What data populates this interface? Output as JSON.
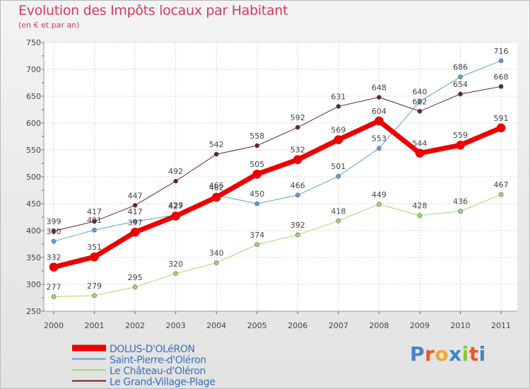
{
  "title": "Evolution des Impôts locaux par Habitant",
  "subtitle": "(en € et par an)",
  "brand": "Proxiti",
  "chart_data": {
    "type": "line",
    "x": [
      "2000",
      "2001",
      "2002",
      "2003",
      "2004",
      "2005",
      "2006",
      "2007",
      "2008",
      "2009",
      "2010",
      "2011"
    ],
    "ylim": [
      250,
      750
    ],
    "yticks": [
      250,
      300,
      350,
      400,
      450,
      500,
      550,
      600,
      650,
      700,
      750
    ],
    "grid": true,
    "legend": "bottom-left",
    "series": [
      {
        "name": "Le Grand-Village-Plage",
        "color": "#6b1e28",
        "width": 1,
        "values": [
          399,
          417,
          447,
          492,
          542,
          558,
          592,
          631,
          648,
          622,
          654,
          668
        ]
      },
      {
        "name": "Le Château-d'Oléron",
        "color": "#9fdc68",
        "width": 1,
        "values": [
          277,
          279,
          295,
          320,
          340,
          374,
          392,
          418,
          449,
          428,
          436,
          467
        ]
      },
      {
        "name": "Saint-Pierre-d'Oléron",
        "color": "#5c9fd6",
        "width": 1,
        "values": [
          380,
          401,
          417,
          429,
          466,
          450,
          466,
          501,
          553,
          640,
          686,
          716
        ]
      },
      {
        "name": "DOLUS-D'OLéRON",
        "color": "#ee0000",
        "width": 7,
        "values": [
          332,
          351,
          397,
          427,
          462,
          505,
          532,
          569,
          604,
          544,
          559,
          591
        ]
      }
    ],
    "legend_order": [
      "DOLUS-D'OLéRON",
      "Saint-Pierre-d'Oléron",
      "Le Château-d'Oléron",
      "Le Grand-Village-Plage"
    ]
  }
}
